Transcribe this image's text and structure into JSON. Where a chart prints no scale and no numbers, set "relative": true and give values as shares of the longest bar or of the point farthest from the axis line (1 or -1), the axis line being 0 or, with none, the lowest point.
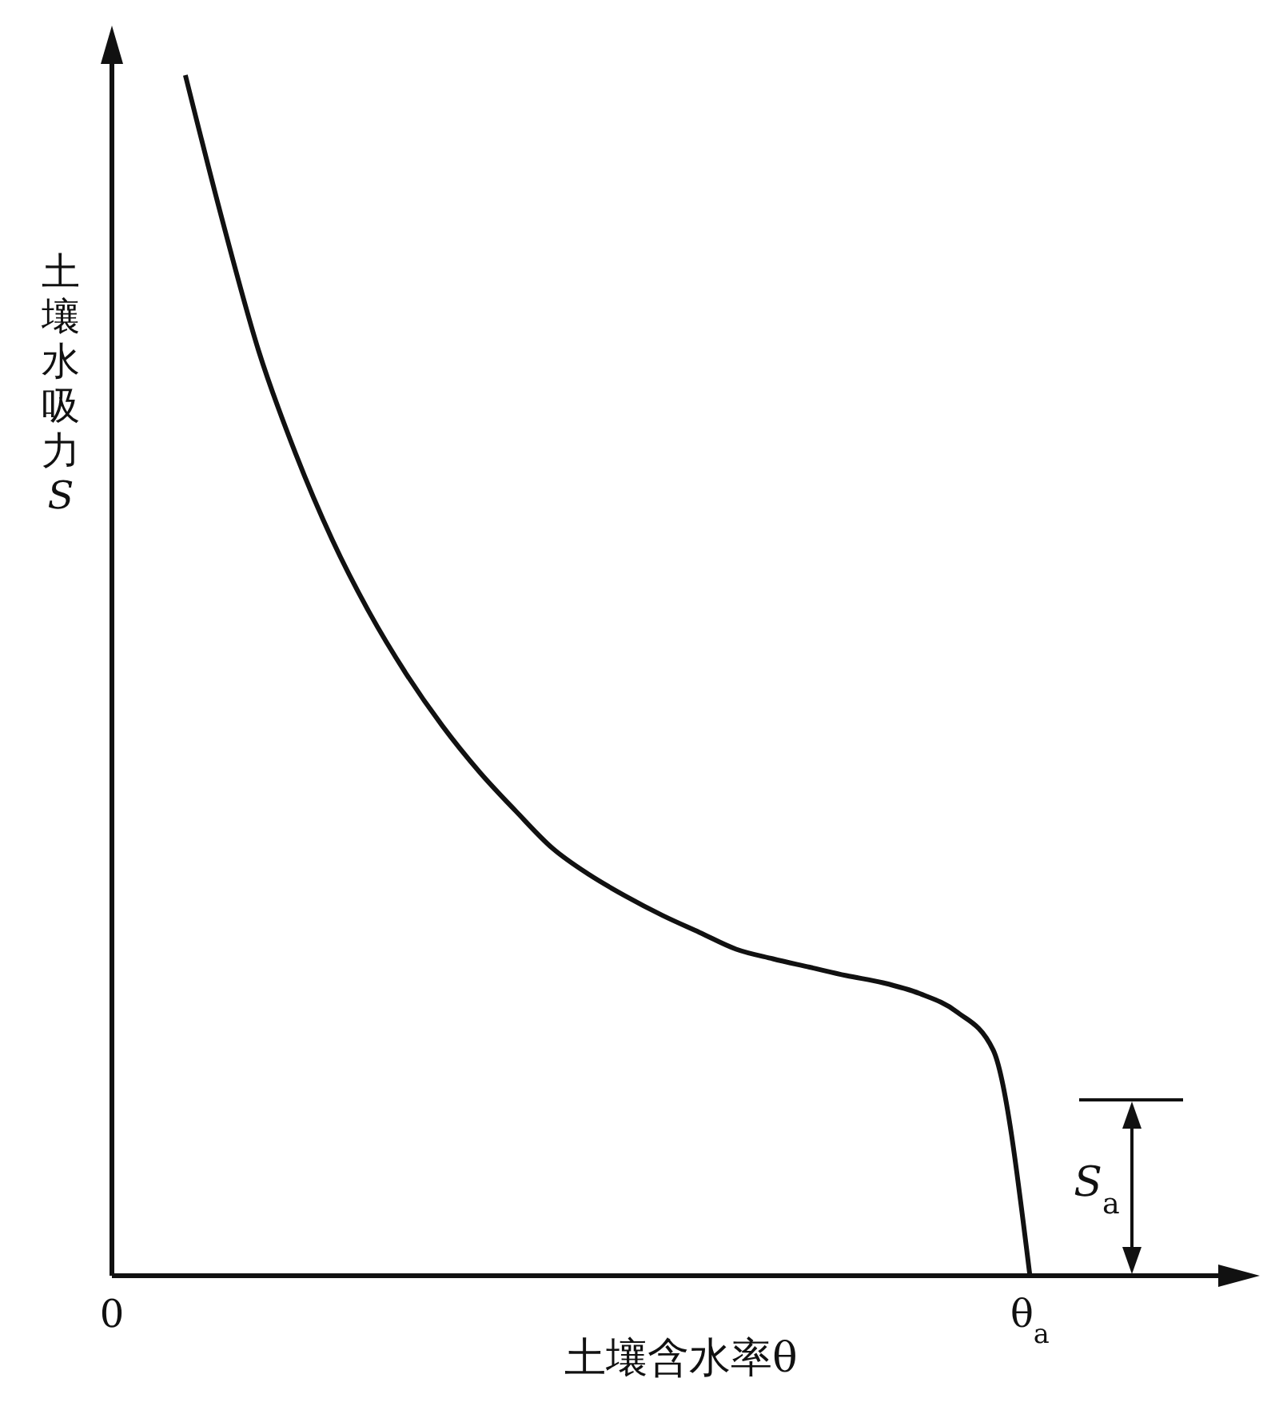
{
  "chart_data": {
    "type": "line",
    "relative": true,
    "xlabel": "土壤含水率θ",
    "ylabel": "土壤水吸力S",
    "grid": false,
    "legend": false,
    "marker": "none",
    "line_style": "solid",
    "categories": [
      "0",
      null,
      null,
      null,
      null,
      null,
      null,
      null,
      null,
      null,
      null,
      null,
      null,
      null,
      null,
      null,
      null,
      null,
      null,
      null,
      null,
      null,
      null,
      null,
      null,
      "θ$_{a}$",
      null,
      null,
      null,
      null,
      null,
      null
    ],
    "series": [
      {
        "color": "#111111",
        "values": [
          null,
          null,
          1,
          0.88,
          0.77,
          0.685,
          0.613,
          0.553,
          0.502,
          0.458,
          0.42,
          0.387,
          0.356,
          0.334,
          0.316,
          0.3,
          0.286,
          0.272,
          0.264,
          0.257,
          0.25,
          0.244,
          0.235,
          0.22,
          0.188,
          0,
          null,
          null,
          null,
          null,
          null,
          null
        ]
      }
    ],
    "annotations": [
      "S$_{a}$"
    ]
  }
}
